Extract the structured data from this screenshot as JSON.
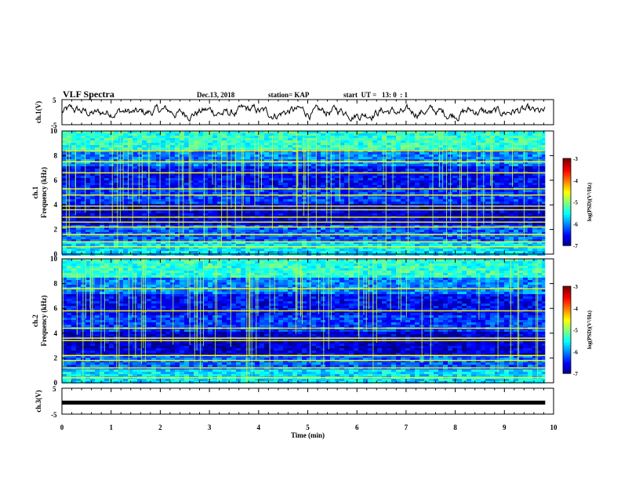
{
  "header": {
    "title": "VLF Spectra",
    "date": "Dec.13, 2018",
    "station": "station= KAP",
    "start_ut": "start  UT =   13: 0  : 1"
  },
  "chart_data": [
    {
      "panel": "ch1-waveform",
      "type": "line",
      "ylabel": "ch.1(V)",
      "ylim": [
        -5,
        5
      ],
      "yticks": [
        "5",
        "-5"
      ],
      "xlim": [
        0,
        10
      ],
      "data_xmax": 9.83,
      "series": [
        {
          "values_note": "noisy waveform approx -3 to +3 V",
          "color": "#000000"
        }
      ]
    },
    {
      "panel": "ch1-spectrogram",
      "type": "heatmap",
      "ylabel": "ch.1\nFrequency  (kHz)",
      "ylim": [
        0,
        10
      ],
      "yticks": [
        "0",
        "2",
        "4",
        "6",
        "8",
        "10"
      ],
      "xlim": [
        0,
        10
      ],
      "colorbar": {
        "label": "log(PSD)(V²/Hz)",
        "range": [
          -7,
          -3
        ],
        "ticks": [
          "-3",
          "-4",
          "-5",
          "-6",
          "-7"
        ]
      },
      "lines_khz": [
        0.6,
        1.0,
        1.6,
        2.2,
        2.6,
        3.0,
        3.6,
        3.9,
        4.8,
        5.3,
        6.6,
        7.5,
        8.4
      ]
    },
    {
      "panel": "ch2-spectrogram",
      "type": "heatmap",
      "ylabel": "ch.2\nFrequency  (kHz)",
      "ylim": [
        0,
        10
      ],
      "yticks": [
        "0",
        "2",
        "4",
        "6",
        "8",
        "10"
      ],
      "xlim": [
        0,
        10
      ],
      "colorbar": {
        "label": "log(PSD)(V²/Hz)",
        "range": [
          -7,
          -3
        ],
        "ticks": [
          "-3",
          "-4",
          "-5",
          "-6",
          "-7"
        ]
      },
      "lines_khz": [
        0.4,
        1.2,
        1.8,
        2.2,
        3.4,
        3.6,
        4.4,
        5.8,
        7.6
      ]
    },
    {
      "panel": "ch3-waveform",
      "type": "line",
      "ylabel": "ch.3(V)",
      "ylim": [
        -5,
        5
      ],
      "yticks": [
        "5",
        "-5"
      ],
      "xlim": [
        0,
        10
      ],
      "data_xmax": 9.83,
      "series": [
        {
          "values": [
            -0.7
          ],
          "color": "#000000"
        }
      ]
    }
  ],
  "xaxis": {
    "label": "Time  (min)",
    "ticks": [
      "0",
      "1",
      "2",
      "3",
      "4",
      "5",
      "6",
      "7",
      "8",
      "9",
      "10"
    ]
  },
  "colors": {
    "low": "#00007f",
    "mid": "#00ff00",
    "high": "#ff0000",
    "line": "#000000"
  }
}
